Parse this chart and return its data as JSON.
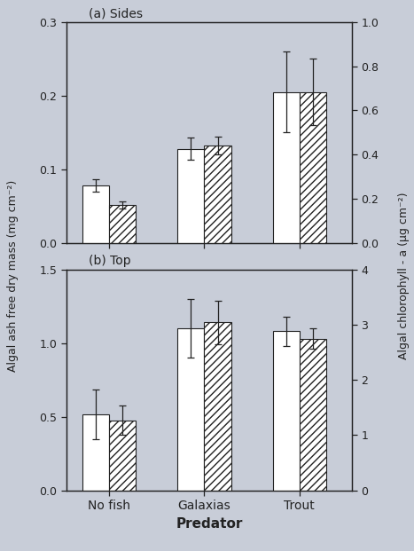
{
  "title_a": "(a) Sides",
  "title_b": "(b) Top",
  "xlabel": "Predator",
  "ylabel_left": "Algal ash free dry mass (mg cm⁻²)",
  "ylabel_right": "Algal chlorophyll - a (μg cm⁻²)",
  "categories": [
    "No fish",
    "Galaxias",
    "Trout"
  ],
  "panel_a": {
    "bar1_values": [
      0.078,
      0.128,
      0.205
    ],
    "bar1_errors": [
      0.008,
      0.015,
      0.055
    ],
    "bar2_values": [
      0.052,
      0.132,
      0.205
    ],
    "bar2_errors": [
      0.005,
      0.012,
      0.045
    ],
    "ylim_left": [
      0,
      0.3
    ],
    "ylim_right": [
      0,
      1.0
    ],
    "yticks_left": [
      0,
      0.1,
      0.2,
      0.3
    ],
    "yticks_right": [
      0,
      0.2,
      0.4,
      0.6,
      0.8,
      1.0
    ]
  },
  "panel_b": {
    "bar1_values": [
      0.515,
      1.1,
      1.08
    ],
    "bar1_errors": [
      0.17,
      0.2,
      0.1
    ],
    "bar2_values": [
      0.475,
      1.14,
      1.03
    ],
    "bar2_errors": [
      0.1,
      0.15,
      0.07
    ],
    "ylim_left": [
      0,
      1.5
    ],
    "ylim_right": [
      0,
      4.0
    ],
    "yticks_left": [
      0,
      0.5,
      1.0,
      1.5
    ],
    "yticks_right": [
      0,
      1,
      2,
      3,
      4
    ]
  },
  "bar_width": 0.28,
  "group_positions": [
    0.5,
    1.5,
    2.5
  ],
  "bar_color_open": "white",
  "bar_color_hatch": "white",
  "hatch_pattern": "////",
  "edge_color": "#222222",
  "background_color": "#c8cdd8",
  "axes_bg_color": "#c8cdd8"
}
